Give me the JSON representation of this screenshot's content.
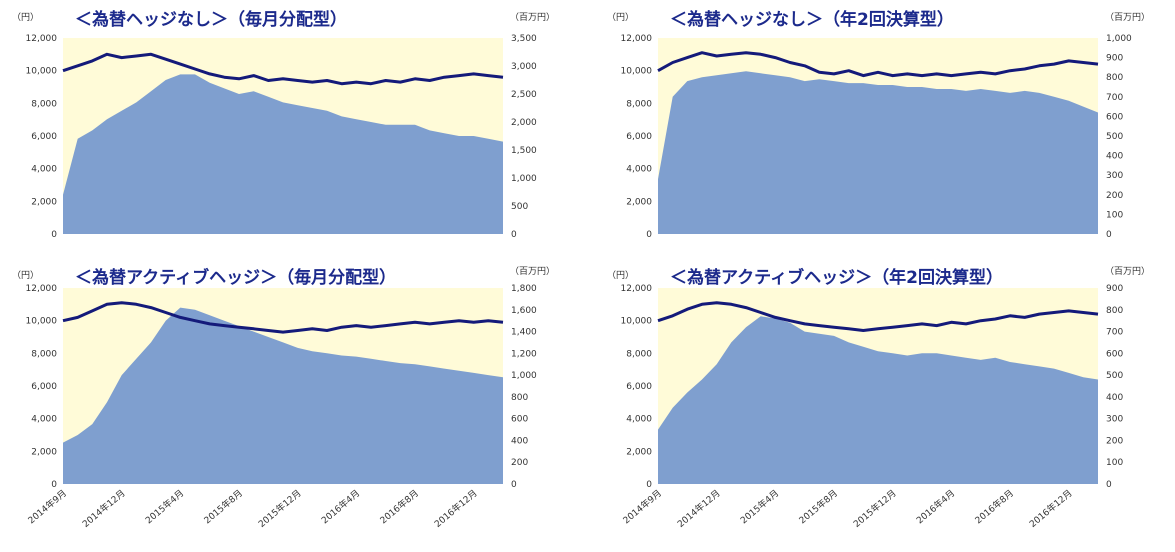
{
  "x_labels": [
    "2014年9月",
    "2014年12月",
    "2015年4月",
    "2015年8月",
    "2015年12月",
    "2016年4月",
    "2016年8月",
    "2016年12月"
  ],
  "colors": {
    "plot_bg": "#fffbd8",
    "area": "#7f9fcf",
    "line": "#141a7a",
    "title": "#1c2a8c"
  },
  "chart_data": [
    {
      "type": "area+line",
      "title": "＜為替ヘッジなし＞（毎月分配型）",
      "left_unit": "（円）",
      "right_unit": "（百万円）",
      "left_ticks": [
        "12,000",
        "10,000",
        "8,000",
        "6,000",
        "4,000",
        "2,000",
        "0"
      ],
      "right_ticks": [
        "3,500",
        "3,000",
        "2,500",
        "2,000",
        "1,500",
        "1,000",
        "500",
        "0"
      ],
      "left_range": [
        0,
        12000
      ],
      "right_range": [
        0,
        3500
      ],
      "series": [
        {
          "kind": "area",
          "axis": "right",
          "values": [
            700,
            1700,
            1850,
            2050,
            2200,
            2350,
            2550,
            2750,
            2850,
            2850,
            2700,
            2600,
            2500,
            2550,
            2450,
            2350,
            2300,
            2250,
            2200,
            2100,
            2050,
            2000,
            1950,
            1950,
            1950,
            1850,
            1800,
            1750,
            1750,
            1700,
            1650
          ]
        },
        {
          "kind": "line",
          "axis": "left",
          "values": [
            10000,
            10300,
            10600,
            11000,
            10800,
            10900,
            11000,
            10700,
            10400,
            10100,
            9800,
            9600,
            9500,
            9700,
            9400,
            9500,
            9400,
            9300,
            9400,
            9200,
            9300,
            9200,
            9400,
            9300,
            9500,
            9400,
            9600,
            9700,
            9800,
            9700,
            9600
          ]
        }
      ]
    },
    {
      "type": "area+line",
      "title": "＜為替ヘッジなし＞（年2回決算型）",
      "left_unit": "（円）",
      "right_unit": "（百万円）",
      "left_ticks": [
        "12,000",
        "10,000",
        "8,000",
        "6,000",
        "4,000",
        "2,000",
        "0"
      ],
      "right_ticks": [
        "1,000",
        "900",
        "800",
        "700",
        "600",
        "500",
        "400",
        "300",
        "200",
        "100",
        "0"
      ],
      "left_range": [
        0,
        12000
      ],
      "right_range": [
        0,
        1000
      ],
      "series": [
        {
          "kind": "area",
          "axis": "right",
          "values": [
            280,
            700,
            780,
            800,
            810,
            820,
            830,
            820,
            810,
            800,
            780,
            790,
            780,
            770,
            770,
            760,
            760,
            750,
            750,
            740,
            740,
            730,
            740,
            730,
            720,
            730,
            720,
            700,
            680,
            650,
            620
          ]
        },
        {
          "kind": "line",
          "axis": "left",
          "values": [
            10000,
            10500,
            10800,
            11100,
            10900,
            11000,
            11100,
            11000,
            10800,
            10500,
            10300,
            9900,
            9800,
            10000,
            9700,
            9900,
            9700,
            9800,
            9700,
            9800,
            9700,
            9800,
            9900,
            9800,
            10000,
            10100,
            10300,
            10400,
            10600,
            10500,
            10400
          ]
        }
      ]
    },
    {
      "type": "area+line",
      "title": "＜為替アクティブヘッジ＞（毎月分配型）",
      "left_unit": "（円）",
      "right_unit": "（百万円）",
      "left_ticks": [
        "12,000",
        "10,000",
        "8,000",
        "6,000",
        "4,000",
        "2,000",
        "0"
      ],
      "right_ticks": [
        "1,800",
        "1,600",
        "1,400",
        "1,200",
        "1,000",
        "800",
        "600",
        "400",
        "200",
        "0"
      ],
      "left_range": [
        0,
        12000
      ],
      "right_range": [
        0,
        1800
      ],
      "series": [
        {
          "kind": "area",
          "axis": "right",
          "values": [
            380,
            450,
            550,
            750,
            1000,
            1150,
            1300,
            1500,
            1620,
            1600,
            1550,
            1500,
            1450,
            1400,
            1350,
            1300,
            1250,
            1220,
            1200,
            1180,
            1170,
            1150,
            1130,
            1110,
            1100,
            1080,
            1060,
            1040,
            1020,
            1000,
            980
          ]
        },
        {
          "kind": "line",
          "axis": "left",
          "values": [
            10000,
            10200,
            10600,
            11000,
            11100,
            11000,
            10800,
            10500,
            10200,
            10000,
            9800,
            9700,
            9600,
            9500,
            9400,
            9300,
            9400,
            9500,
            9400,
            9600,
            9700,
            9600,
            9700,
            9800,
            9900,
            9800,
            9900,
            10000,
            9900,
            10000,
            9900
          ]
        }
      ]
    },
    {
      "type": "area+line",
      "title": "＜為替アクティブヘッジ＞（年2回決算型）",
      "left_unit": "（円）",
      "right_unit": "（百万円）",
      "left_ticks": [
        "12,000",
        "10,000",
        "8,000",
        "6,000",
        "4,000",
        "2,000",
        "0"
      ],
      "right_ticks": [
        "900",
        "800",
        "700",
        "600",
        "500",
        "400",
        "300",
        "200",
        "100",
        "0"
      ],
      "left_range": [
        0,
        12000
      ],
      "right_range": [
        0,
        900
      ],
      "series": [
        {
          "kind": "area",
          "axis": "right",
          "values": [
            250,
            350,
            420,
            480,
            550,
            650,
            720,
            770,
            760,
            740,
            700,
            690,
            680,
            650,
            630,
            610,
            600,
            590,
            600,
            600,
            590,
            580,
            570,
            580,
            560,
            550,
            540,
            530,
            510,
            490,
            480
          ]
        },
        {
          "kind": "line",
          "axis": "left",
          "values": [
            10000,
            10300,
            10700,
            11000,
            11100,
            11000,
            10800,
            10500,
            10200,
            10000,
            9800,
            9700,
            9600,
            9500,
            9400,
            9500,
            9600,
            9700,
            9800,
            9700,
            9900,
            9800,
            10000,
            10100,
            10300,
            10200,
            10400,
            10500,
            10600,
            10500,
            10400
          ]
        }
      ]
    }
  ]
}
